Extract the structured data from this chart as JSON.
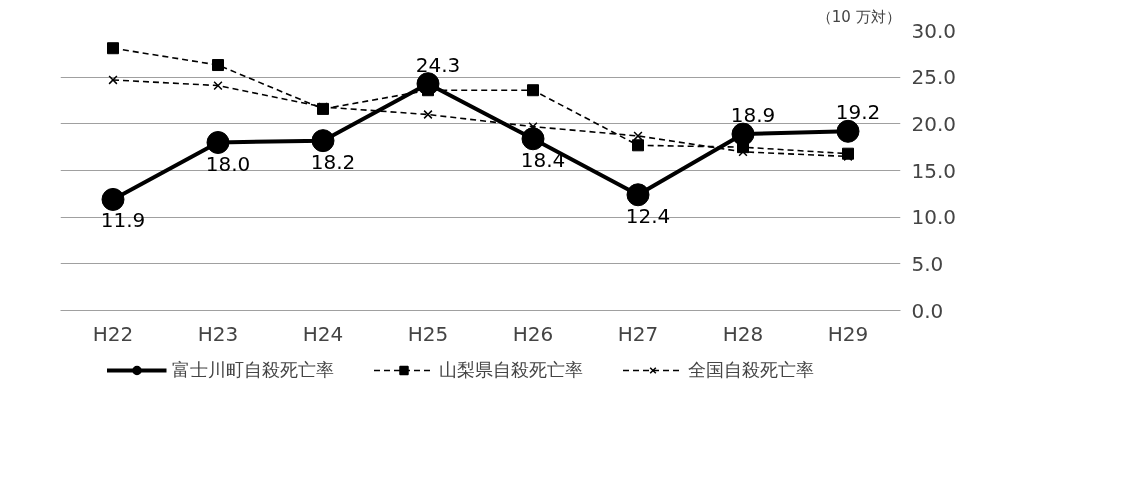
{
  "chart_data": {
    "type": "line",
    "ylabel": "（10 万対）",
    "categories": [
      "H22",
      "H23",
      "H24",
      "H25",
      "H26",
      "H27",
      "H28",
      "H29"
    ],
    "series": [
      {
        "name": "富士川町自殺死亡率",
        "color": "#000000",
        "marker": "circle",
        "line_style": "solid",
        "value_labels": [
          "11.9",
          "18.0",
          "18.2",
          "24.3",
          "18.4",
          "12.4",
          "18.9",
          "19.2"
        ],
        "values": [
          11.9,
          18.0,
          18.2,
          24.3,
          18.4,
          12.4,
          18.9,
          19.2
        ]
      },
      {
        "name": "山梨県自殺死亡率",
        "color": "#000000",
        "marker": "square",
        "line_style": "dashed",
        "values": [
          28.1,
          26.3,
          21.6,
          23.6,
          23.6,
          17.7,
          17.5,
          16.8
        ]
      },
      {
        "name": "全国自殺死亡率",
        "color": "#000000",
        "marker": "cross",
        "line_style": "dashed",
        "values": [
          24.7,
          24.1,
          21.8,
          21.0,
          19.7,
          18.7,
          17.0,
          16.5
        ]
      }
    ],
    "ylim": [
      0,
      30
    ],
    "yticks": [
      {
        "value": 0,
        "label": "0.0"
      },
      {
        "value": 5,
        "label": "5.0"
      },
      {
        "value": 10,
        "label": "10.0"
      },
      {
        "value": 15,
        "label": "15.0"
      },
      {
        "value": 20,
        "label": "20.0"
      },
      {
        "value": 25,
        "label": "25.0"
      },
      {
        "value": 30,
        "label": "30.0"
      }
    ],
    "grid": "y",
    "legend": "bottom"
  }
}
